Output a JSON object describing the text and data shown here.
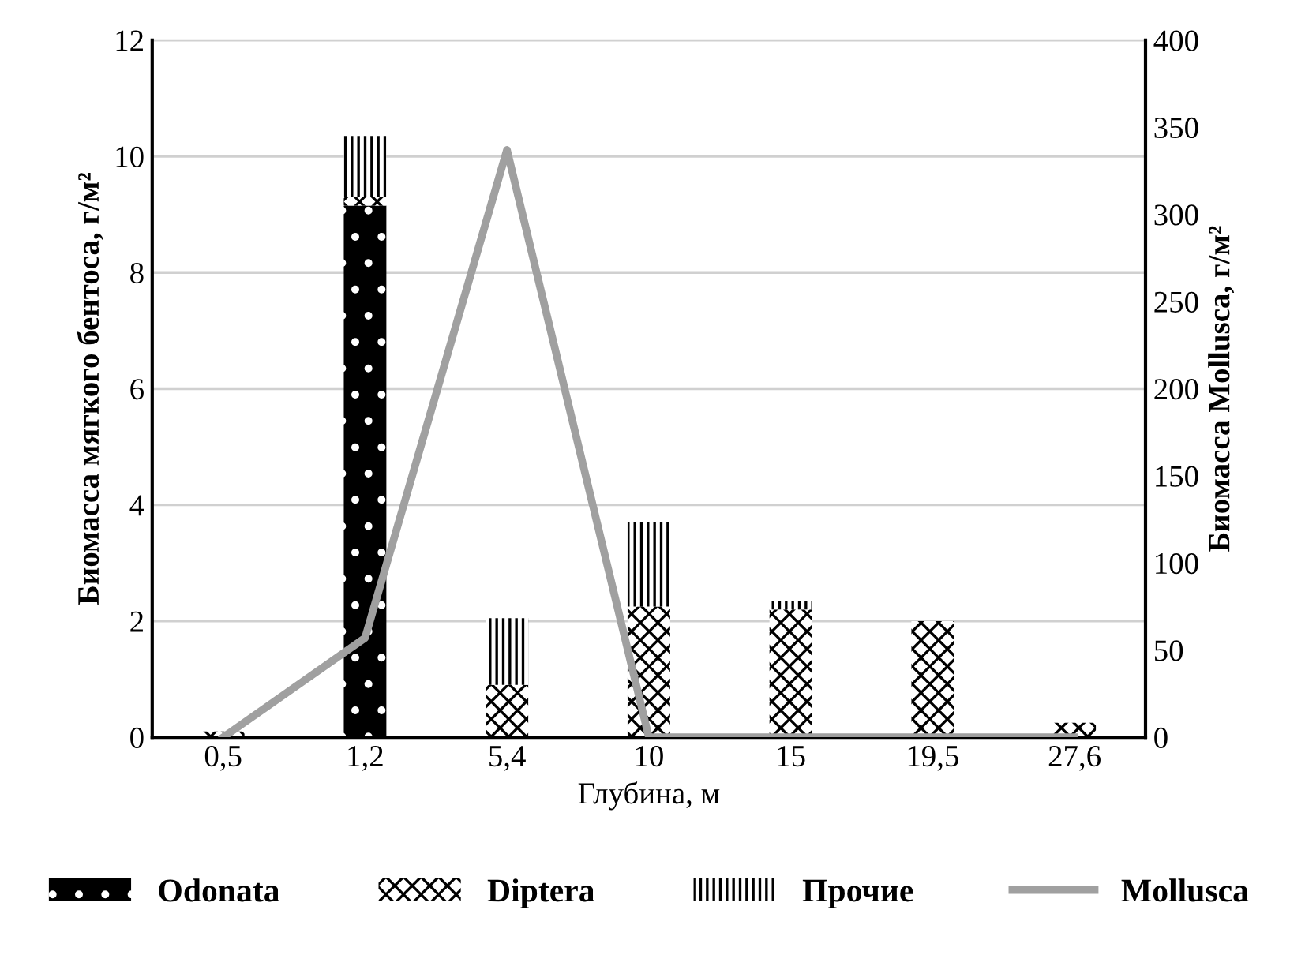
{
  "chart_data": {
    "type": "bar",
    "stacked": true,
    "xlabel": "Глубина, м",
    "ylabel": "Биомасса мягкого бентоса, г/м²",
    "y2label": "Биомасса Mollusca, г/м²",
    "categories": [
      "0,5",
      "1,2",
      "5,4",
      "10",
      "15",
      "19,5",
      "27,6"
    ],
    "series": [
      {
        "name": "Odonata",
        "color": "#000000",
        "values": [
          0.02,
          9.15,
          0,
          0,
          0,
          0,
          0
        ]
      },
      {
        "name": "Diptera",
        "color": "#ffffff",
        "values": [
          0.08,
          0.15,
          0.9,
          2.25,
          2.2,
          2.0,
          0.25
        ]
      },
      {
        "name": "Прочие",
        "color": "#ffffff",
        "values": [
          0,
          1.05,
          1.15,
          1.45,
          0.15,
          0,
          0
        ]
      },
      {
        "name": "Mollusca",
        "type": "line",
        "axis": "y2",
        "color": "#a0a0a0",
        "values": [
          0,
          57,
          337,
          0,
          0,
          0,
          0
        ]
      }
    ],
    "ylim": [
      0,
      12
    ],
    "yticks": [
      0,
      2,
      4,
      6,
      8,
      10,
      12
    ],
    "y2lim": [
      0,
      400
    ],
    "y2ticks": [
      0,
      50,
      100,
      150,
      200,
      250,
      300,
      350,
      400
    ],
    "grid": "y",
    "legend": "bottom"
  }
}
